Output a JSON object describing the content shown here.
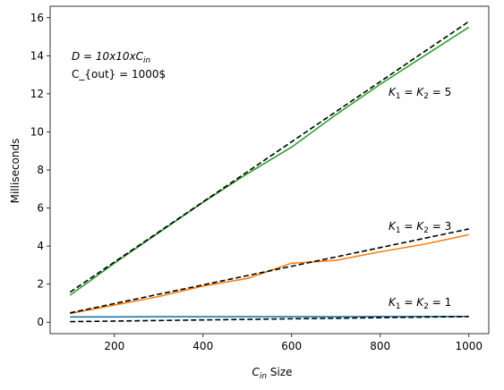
{
  "chart_data": {
    "type": "line",
    "xlabel_main": "C",
    "xlabel_sub": "in",
    "xlabel_rest": " Size",
    "ylabel": "Milliseconds",
    "xlim": [
      55,
      1045
    ],
    "ylim": [
      -0.6,
      16.6
    ],
    "x_ticks": [
      200,
      400,
      600,
      800,
      1000
    ],
    "y_ticks": [
      0,
      2,
      4,
      6,
      8,
      10,
      12,
      14,
      16
    ],
    "grid": false,
    "series": [
      {
        "color": "#1f77b4",
        "style": "solid",
        "x": [
          100,
          200,
          300,
          400,
          500,
          600,
          700,
          800,
          900,
          1000
        ],
        "y": [
          0.28,
          0.28,
          0.29,
          0.29,
          0.29,
          0.29,
          0.29,
          0.3,
          0.3,
          0.3
        ]
      },
      {
        "color": "#000000",
        "style": "dashed",
        "x": [
          100,
          1000
        ],
        "y": [
          0.03,
          0.3
        ]
      },
      {
        "color": "#ff7f0e",
        "style": "solid",
        "x": [
          100,
          200,
          300,
          400,
          500,
          600,
          700,
          800,
          900,
          1000
        ],
        "y": [
          0.46,
          0.9,
          1.35,
          1.9,
          2.3,
          3.1,
          3.25,
          3.7,
          4.1,
          4.6
        ]
      },
      {
        "color": "#000000",
        "style": "dashed",
        "x": [
          100,
          1000
        ],
        "y": [
          0.49,
          4.9
        ]
      },
      {
        "color": "#2ca02c",
        "style": "solid",
        "x": [
          100,
          200,
          300,
          400,
          500,
          600,
          700,
          800,
          900,
          1000
        ],
        "y": [
          1.42,
          3.1,
          4.7,
          6.3,
          7.8,
          9.2,
          10.9,
          12.5,
          14.0,
          15.5
        ]
      },
      {
        "color": "#000000",
        "style": "dashed",
        "x": [
          100,
          1000
        ],
        "y": [
          1.58,
          15.8
        ]
      }
    ],
    "annotations": {
      "d_label": {
        "main": "D = 10x10xC",
        "sub": "in"
      },
      "cout_label": "C_{out} = 1000$",
      "k5": {
        "k1": "K",
        "s1": "1",
        "mid": " = K",
        "s2": "2",
        "end": " = 5"
      },
      "k3": {
        "k1": "K",
        "s1": "1",
        "mid": " = K",
        "s2": "2",
        "end": " = 3"
      },
      "k1": {
        "k1": "K",
        "s1": "1",
        "mid": " = K",
        "s2": "2",
        "end": " = 1"
      }
    }
  }
}
